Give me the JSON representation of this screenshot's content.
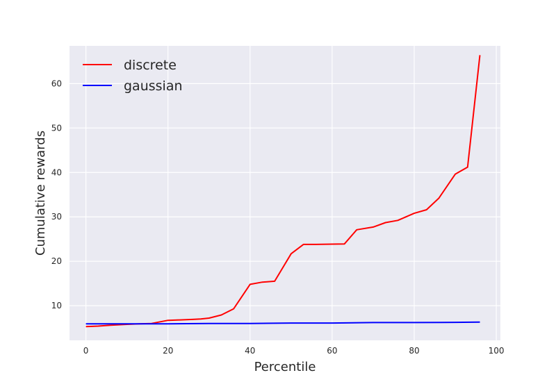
{
  "chart_data": {
    "type": "line",
    "title": "",
    "xlabel": "Percentile",
    "ylabel": "Cumulative rewards",
    "xlim": [
      -4,
      101
    ],
    "ylim": [
      2.2,
      68.5
    ],
    "xticks": [
      0,
      20,
      40,
      60,
      80,
      100
    ],
    "yticks": [
      10,
      20,
      30,
      40,
      50,
      60
    ],
    "grid": true,
    "legend_position": "top-left",
    "background": "#eaeaf2",
    "series": [
      {
        "name": "discrete",
        "color": "#ff0000",
        "x": [
          0,
          3,
          6,
          10,
          13,
          16,
          20,
          23,
          26,
          28,
          30,
          33,
          36,
          40,
          43,
          46,
          50,
          53,
          56,
          60,
          63,
          66,
          70,
          73,
          76,
          80,
          83,
          86,
          90,
          93,
          96
        ],
        "y": [
          5.3,
          5.4,
          5.6,
          5.8,
          5.9,
          6.0,
          6.7,
          6.8,
          6.9,
          7.0,
          7.2,
          7.9,
          9.3,
          14.8,
          15.3,
          15.5,
          21.7,
          23.8,
          23.8,
          23.85,
          23.9,
          27.1,
          27.7,
          28.7,
          29.2,
          30.8,
          31.6,
          34.2,
          39.6,
          41.2,
          66.4
        ]
      },
      {
        "name": "gaussian",
        "color": "#0000ff",
        "x": [
          0,
          10,
          20,
          30,
          40,
          50,
          60,
          70,
          80,
          90,
          96
        ],
        "y": [
          5.9,
          5.9,
          5.9,
          6.0,
          6.0,
          6.1,
          6.1,
          6.2,
          6.2,
          6.25,
          6.3
        ]
      }
    ]
  }
}
